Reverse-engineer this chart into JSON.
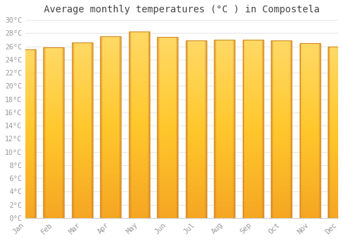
{
  "title": "Average monthly temperatures (°C ) in Compostela",
  "months": [
    "Jan",
    "Feb",
    "Mar",
    "Apr",
    "May",
    "Jun",
    "Jul",
    "Aug",
    "Sep",
    "Oct",
    "Nov",
    "Dec"
  ],
  "values": [
    25.5,
    25.8,
    26.6,
    27.5,
    28.2,
    27.4,
    26.9,
    27.0,
    27.0,
    26.9,
    26.5,
    26.0
  ],
  "ylim": [
    0,
    30
  ],
  "yticks": [
    0,
    2,
    4,
    6,
    8,
    10,
    12,
    14,
    16,
    18,
    20,
    22,
    24,
    26,
    28,
    30
  ],
  "bar_color_bottom": "#F5A623",
  "bar_color_top": "#FFD966",
  "bar_color_center": "#FFC72C",
  "bar_edge_color": "#D4892A",
  "background_color": "#FFFFFF",
  "plot_bg_color": "#FFFFFF",
  "grid_color": "#E8E8E8",
  "title_fontsize": 10,
  "tick_fontsize": 7.5,
  "tick_label_color": "#999999",
  "font_family": "monospace"
}
